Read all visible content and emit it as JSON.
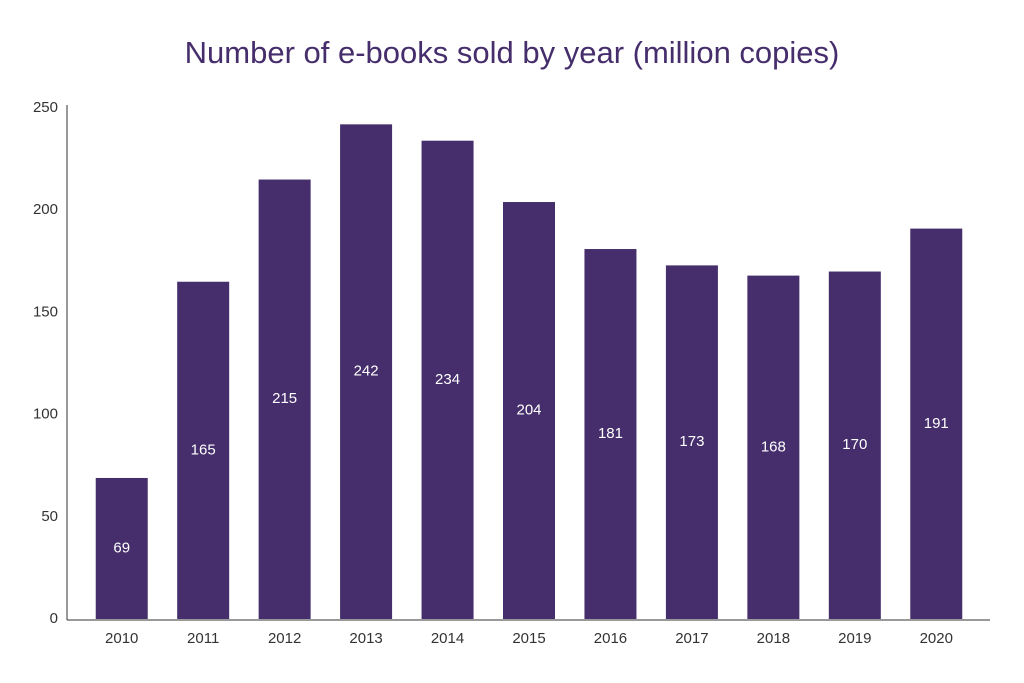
{
  "chart_data": {
    "type": "bar",
    "title": "Number of e-books sold by year (million copies)",
    "categories": [
      "2010",
      "2011",
      "2012",
      "2013",
      "2014",
      "2015",
      "2016",
      "2017",
      "2018",
      "2019",
      "2020"
    ],
    "values": [
      69,
      165,
      215,
      242,
      234,
      204,
      181,
      173,
      168,
      170,
      191
    ],
    "color": "#452e6b",
    "ylim": [
      0,
      250
    ],
    "yticks": [
      0,
      50,
      100,
      150,
      200,
      250
    ],
    "grid": false
  }
}
